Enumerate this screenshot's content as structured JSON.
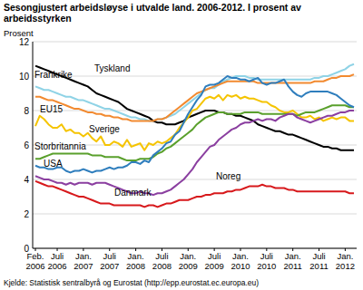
{
  "chart_data": {
    "type": "line",
    "title": "Sesongjustert arbeidsløyse i utvalde land. 2006-2012. I prosent av arbeidsstyrken",
    "y_label": "Prosent",
    "source": "Kjelde: Statistisk sentralbyrå og Eurostat (http://epp.eurostat.ec.europa.eu)",
    "categories": [
      "Feb. 2006",
      null,
      null,
      null,
      null,
      "Juli 2006",
      null,
      null,
      null,
      null,
      null,
      "Jan. 2007",
      null,
      null,
      null,
      null,
      null,
      "Juli 2007",
      null,
      null,
      null,
      null,
      null,
      "Jan. 2008",
      null,
      null,
      null,
      null,
      null,
      "Juli 2008",
      null,
      null,
      null,
      null,
      null,
      "Jan. 2009",
      null,
      null,
      null,
      null,
      null,
      "Juli 2009",
      null,
      null,
      null,
      null,
      null,
      "Jan. 2010",
      null,
      null,
      null,
      null,
      null,
      "Juli 2010",
      null,
      null,
      null,
      null,
      null,
      "Jan. 2011",
      null,
      null,
      null,
      null,
      null,
      "Juli 2011",
      null,
      null,
      null,
      null,
      null,
      "Jan. 2012",
      null,
      null
    ],
    "ylim": [
      0,
      12
    ],
    "yticks": [
      0,
      2,
      4,
      6,
      8,
      10,
      12
    ],
    "grid": true,
    "series": [
      {
        "name": "Frankrike",
        "color": "#8fd3e6",
        "values": [
          9.4,
          9.3,
          9.2,
          9.2,
          9.1,
          9.0,
          8.9,
          8.8,
          8.8,
          8.7,
          8.6,
          8.6,
          8.5,
          8.4,
          8.3,
          8.2,
          8.1,
          8.1,
          8.0,
          7.9,
          7.8,
          7.7,
          7.6,
          7.6,
          7.5,
          7.5,
          7.4,
          7.4,
          7.5,
          7.5,
          7.6,
          7.7,
          7.8,
          8.0,
          8.2,
          8.4,
          8.6,
          8.8,
          9.0,
          9.2,
          9.3,
          9.3,
          9.5,
          9.7,
          9.8,
          9.9,
          10.0,
          10.0,
          10.0,
          9.9,
          9.9,
          9.8,
          9.8,
          9.8,
          9.8,
          9.8,
          9.8,
          9.8,
          9.8,
          9.8,
          9.8,
          9.8,
          9.8,
          9.8,
          9.9,
          9.9,
          10.0,
          10.0,
          10.1,
          10.2,
          10.3,
          10.4,
          10.6,
          10.7
        ]
      },
      {
        "name": "Tyskland",
        "color": "#000000",
        "values": [
          10.6,
          10.5,
          10.4,
          10.3,
          10.2,
          10.1,
          10.0,
          9.9,
          9.8,
          9.7,
          9.6,
          9.5,
          9.4,
          9.2,
          9.0,
          8.9,
          8.8,
          8.7,
          8.6,
          8.5,
          8.3,
          8.1,
          8.0,
          7.9,
          7.8,
          7.7,
          7.6,
          7.4,
          7.3,
          7.3,
          7.2,
          7.2,
          7.2,
          7.3,
          7.4,
          7.6,
          7.7,
          7.8,
          7.9,
          8.0,
          8.0,
          8.0,
          7.9,
          7.9,
          7.8,
          7.8,
          7.7,
          7.7,
          7.6,
          7.5,
          7.4,
          7.2,
          7.1,
          7.0,
          6.9,
          6.8,
          6.8,
          6.7,
          6.6,
          6.6,
          6.5,
          6.4,
          6.3,
          6.2,
          6.1,
          6.0,
          5.9,
          5.9,
          5.8,
          5.8,
          5.7,
          5.7,
          5.7,
          5.7
        ]
      },
      {
        "name": "EU15",
        "color": "#f28a30",
        "values": [
          8.8,
          8.8,
          8.7,
          8.6,
          8.6,
          8.5,
          8.4,
          8.3,
          8.2,
          8.1,
          8.1,
          8.0,
          7.9,
          7.9,
          7.8,
          7.8,
          7.7,
          7.7,
          7.6,
          7.6,
          7.5,
          7.5,
          7.4,
          7.4,
          7.4,
          7.4,
          7.4,
          7.4,
          7.5,
          7.5,
          7.6,
          7.8,
          8.0,
          8.2,
          8.4,
          8.6,
          8.8,
          9.0,
          9.1,
          9.2,
          9.3,
          9.4,
          9.5,
          9.6,
          9.7,
          9.7,
          9.7,
          9.7,
          9.7,
          9.7,
          9.7,
          9.6,
          9.6,
          9.6,
          9.6,
          9.6,
          9.6,
          9.6,
          9.6,
          9.6,
          9.6,
          9.6,
          9.6,
          9.6,
          9.7,
          9.7,
          9.7,
          9.8,
          9.9,
          9.9,
          10.0,
          10.0,
          10.0,
          10.1
        ]
      },
      {
        "name": "Sverige",
        "color": "#f5c400",
        "values": [
          7.1,
          7.7,
          7.5,
          7.2,
          7.0,
          7.0,
          7.2,
          6.8,
          6.9,
          6.7,
          6.7,
          6.5,
          6.7,
          6.4,
          6.2,
          6.5,
          6.0,
          6.0,
          6.2,
          6.1,
          5.9,
          6.3,
          5.9,
          6.0,
          6.1,
          5.7,
          6.1,
          6.0,
          6.2,
          6.1,
          6.2,
          6.4,
          6.6,
          7.0,
          7.3,
          7.6,
          8.0,
          8.1,
          8.4,
          8.7,
          8.8,
          8.7,
          8.9,
          8.6,
          8.9,
          8.8,
          8.9,
          8.7,
          8.8,
          8.7,
          8.7,
          8.6,
          8.5,
          8.5,
          8.3,
          8.2,
          8.0,
          7.9,
          7.9,
          8.0,
          7.8,
          7.6,
          7.6,
          7.7,
          7.5,
          7.6,
          7.4,
          7.5,
          7.6,
          7.5,
          7.6,
          7.6,
          7.4,
          7.4
        ]
      },
      {
        "name": "Storbritannia",
        "color": "#5aa02c",
        "values": [
          5.2,
          5.2,
          5.3,
          5.4,
          5.5,
          5.5,
          5.5,
          5.5,
          5.5,
          5.5,
          5.5,
          5.5,
          5.5,
          5.4,
          5.4,
          5.4,
          5.3,
          5.3,
          5.3,
          5.3,
          5.2,
          5.1,
          5.1,
          5.1,
          5.2,
          5.2,
          5.2,
          5.3,
          5.5,
          5.6,
          5.8,
          5.9,
          6.1,
          6.3,
          6.5,
          6.7,
          6.9,
          7.2,
          7.4,
          7.6,
          7.7,
          7.8,
          7.9,
          7.9,
          7.8,
          7.8,
          7.8,
          7.8,
          7.9,
          7.9,
          7.9,
          7.9,
          7.8,
          7.8,
          7.8,
          7.8,
          7.8,
          7.8,
          7.8,
          7.8,
          7.7,
          7.8,
          7.9,
          7.9,
          7.9,
          8.0,
          8.1,
          8.2,
          8.3,
          8.3,
          8.3,
          8.3,
          8.2,
          8.2
        ]
      },
      {
        "name": "USA",
        "color": "#2f7ebd",
        "values": [
          4.8,
          4.7,
          4.7,
          4.6,
          4.6,
          4.7,
          4.7,
          4.5,
          4.4,
          4.5,
          4.5,
          4.6,
          4.5,
          4.4,
          4.5,
          4.5,
          4.6,
          4.7,
          4.6,
          4.7,
          4.7,
          4.8,
          5.0,
          5.0,
          4.9,
          5.1,
          5.0,
          5.4,
          5.6,
          5.8,
          6.1,
          6.2,
          6.6,
          6.8,
          7.3,
          7.8,
          8.2,
          8.6,
          8.9,
          9.4,
          9.5,
          9.5,
          9.6,
          9.8,
          10.0,
          9.9,
          9.9,
          9.8,
          9.8,
          9.7,
          9.8,
          9.9,
          9.6,
          9.5,
          9.6,
          9.6,
          9.7,
          9.8,
          9.4,
          9.1,
          8.9,
          8.8,
          9.0,
          9.1,
          9.1,
          9.1,
          9.1,
          9.1,
          9.0,
          8.9,
          8.7,
          8.5,
          8.3,
          8.2
        ]
      },
      {
        "name": "Danmark",
        "color": "#8b3fa0",
        "values": [
          4.2,
          4.1,
          4.0,
          4.0,
          3.9,
          3.8,
          3.8,
          3.7,
          3.8,
          3.7,
          3.8,
          3.8,
          3.8,
          3.7,
          3.8,
          3.8,
          3.8,
          3.7,
          3.6,
          3.5,
          3.4,
          3.3,
          3.2,
          3.2,
          3.3,
          3.2,
          3.2,
          3.1,
          3.2,
          3.2,
          3.3,
          3.4,
          3.6,
          3.8,
          4.0,
          4.3,
          4.6,
          5.0,
          5.3,
          5.6,
          5.9,
          6.0,
          6.3,
          6.5,
          6.7,
          6.9,
          7.0,
          7.2,
          7.3,
          7.3,
          7.4,
          7.5,
          7.4,
          7.5,
          7.5,
          7.4,
          7.6,
          7.7,
          7.8,
          7.8,
          7.6,
          7.5,
          7.4,
          7.3,
          7.4,
          7.5,
          7.6,
          7.7,
          7.7,
          7.8,
          7.9,
          7.9,
          8.0,
          8.0
        ]
      },
      {
        "name": "Noreg",
        "color": "#d7191c",
        "values": [
          3.9,
          3.8,
          3.7,
          3.6,
          3.6,
          3.5,
          3.4,
          3.3,
          3.2,
          3.1,
          3.0,
          3.0,
          2.9,
          2.8,
          2.7,
          2.6,
          2.6,
          2.6,
          2.5,
          2.5,
          2.5,
          2.5,
          2.5,
          2.5,
          2.5,
          2.4,
          2.5,
          2.5,
          2.4,
          2.5,
          2.6,
          2.6,
          2.7,
          2.8,
          2.8,
          2.8,
          2.9,
          3.0,
          3.0,
          3.1,
          3.1,
          3.2,
          3.2,
          3.2,
          3.3,
          3.3,
          3.4,
          3.4,
          3.5,
          3.6,
          3.6,
          3.6,
          3.7,
          3.6,
          3.6,
          3.5,
          3.5,
          3.5,
          3.4,
          3.4,
          3.3,
          3.3,
          3.3,
          3.3,
          3.3,
          3.3,
          3.3,
          3.3,
          3.3,
          3.3,
          3.3,
          3.3,
          3.2,
          3.2
        ]
      }
    ]
  }
}
